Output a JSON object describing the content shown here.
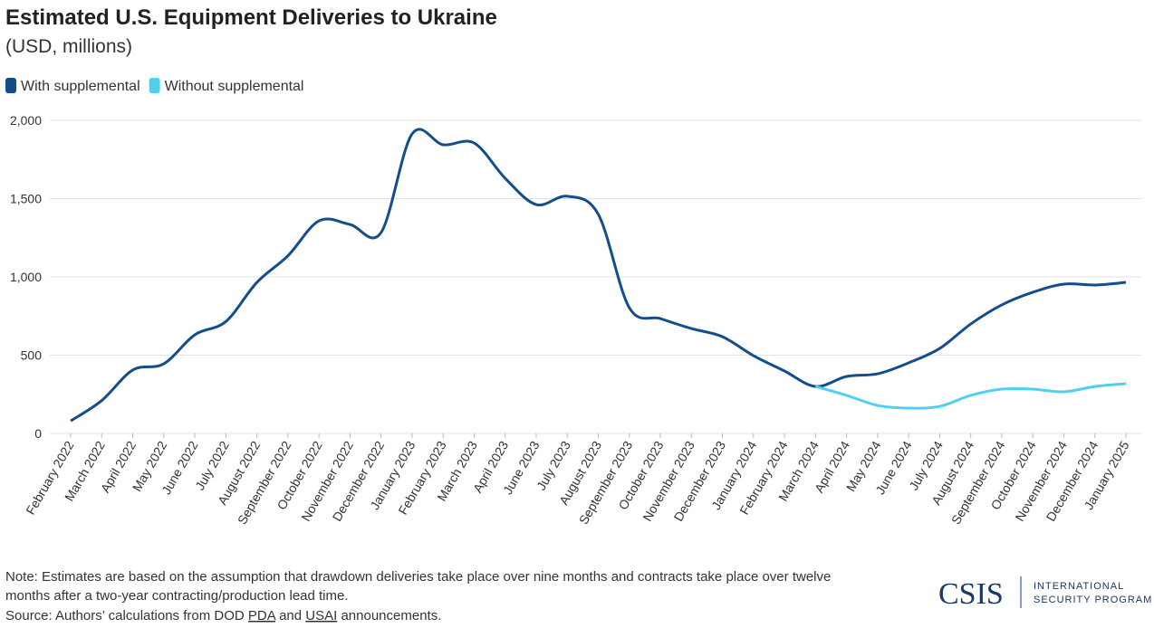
{
  "chart_data": {
    "type": "line",
    "title": "Estimated U.S. Equipment Deliveries to Ukraine",
    "subtitle": "(USD, millions)",
    "categories": [
      "February 2022",
      "March 2022",
      "April 2022",
      "May 2022",
      "June 2022",
      "July 2022",
      "August 2022",
      "September 2022",
      "October 2022",
      "November 2022",
      "December 2022",
      "January 2023",
      "February 2023",
      "March 2023",
      "April 2023",
      "June 2023",
      "July 2023",
      "August 2023",
      "September 2023",
      "October 2023",
      "November 2023",
      "December 2023",
      "January 2024",
      "February 2024",
      "March 2024",
      "April 2024",
      "May 2024",
      "June 2024",
      "July 2024",
      "August 2024",
      "September 2024",
      "October 2024",
      "November 2024",
      "December 2024",
      "January 2025"
    ],
    "series": [
      {
        "name": "With supplemental",
        "color": "#124e8c",
        "values": [
          80,
          210,
          405,
          445,
          630,
          715,
          965,
          1135,
          1358,
          1335,
          1283,
          1913,
          1844,
          1855,
          1630,
          1462,
          1515,
          1400,
          803,
          734,
          670,
          618,
          497,
          399,
          300,
          364,
          381,
          451,
          543,
          699,
          821,
          902,
          954,
          948,
          965
        ]
      },
      {
        "name": "Without supplemental",
        "color": "#4fd0f0",
        "values": [
          null,
          null,
          null,
          null,
          null,
          null,
          null,
          null,
          null,
          null,
          null,
          null,
          null,
          null,
          null,
          null,
          null,
          null,
          null,
          null,
          null,
          null,
          null,
          null,
          300,
          243,
          179,
          162,
          173,
          243,
          283,
          283,
          266,
          300,
          318
        ]
      }
    ],
    "ylim": [
      0,
      2000
    ],
    "yticks": [
      0,
      500,
      {
        "value": 1000,
        "label": "1,000"
      },
      {
        "value": 1500,
        "label": "1,500"
      },
      {
        "value": 2000,
        "label": "2,000"
      }
    ],
    "grid": true,
    "legend": "top-left",
    "note": [
      "Note: Estimates are based on the assumption that drawdown deliveries take place over nine months and contracts take place over twelve",
      "months after a two-year contracting/production lead time."
    ],
    "source": [
      "Source: Authors’ calculations from DOD ",
      "PDA",
      " and ",
      "USAI",
      " announcements."
    ],
    "logo": {
      "name": "CSIS",
      "program": [
        "INTERNATIONAL",
        "SECURITY PROGRAM"
      ]
    }
  }
}
